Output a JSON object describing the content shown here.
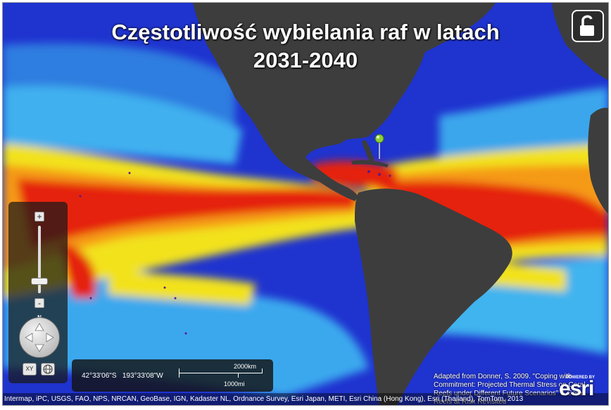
{
  "title": {
    "line1": "Częstotliwość wybielania raf w latach",
    "line2": "2031-2040"
  },
  "controls": {
    "zoom_in": "+",
    "zoom_out": "-",
    "zoom_level_fraction": 0.18,
    "north": "N",
    "xy_label": "XY",
    "globe_icon": "globe-icon",
    "lock_icon": "unlock-icon"
  },
  "coordinates": {
    "latitude": "42°33'06\"S",
    "longitude": "193°33'08\"W"
  },
  "scale_bar": {
    "km": "2000km",
    "mi": "1000mi"
  },
  "attribution": "Adapted from Donner, S. 2009. \"Coping with Commitment: Projected Thermal Stress on Coral Reefs under Different Future Scenarios\" & Coral Reefs at Risk Revisited",
  "credits": "Intermap, iPC, USGS, FAO, NPS, NRCAN, GeoBase, IGN, Kadaster NL, Ordnance Survey, Esri Japan, METI, Esri China (Hong Kong), Esri (Thailand), TomTom, 2013",
  "logo": {
    "powered_by": "POWERED BY",
    "name": "esri"
  },
  "colors": {
    "land": "#3a3a3a",
    "low": "#1e2fd0",
    "mid": "#33a9f0",
    "high": "#f3e21c",
    "peak": "#e51a0e"
  }
}
